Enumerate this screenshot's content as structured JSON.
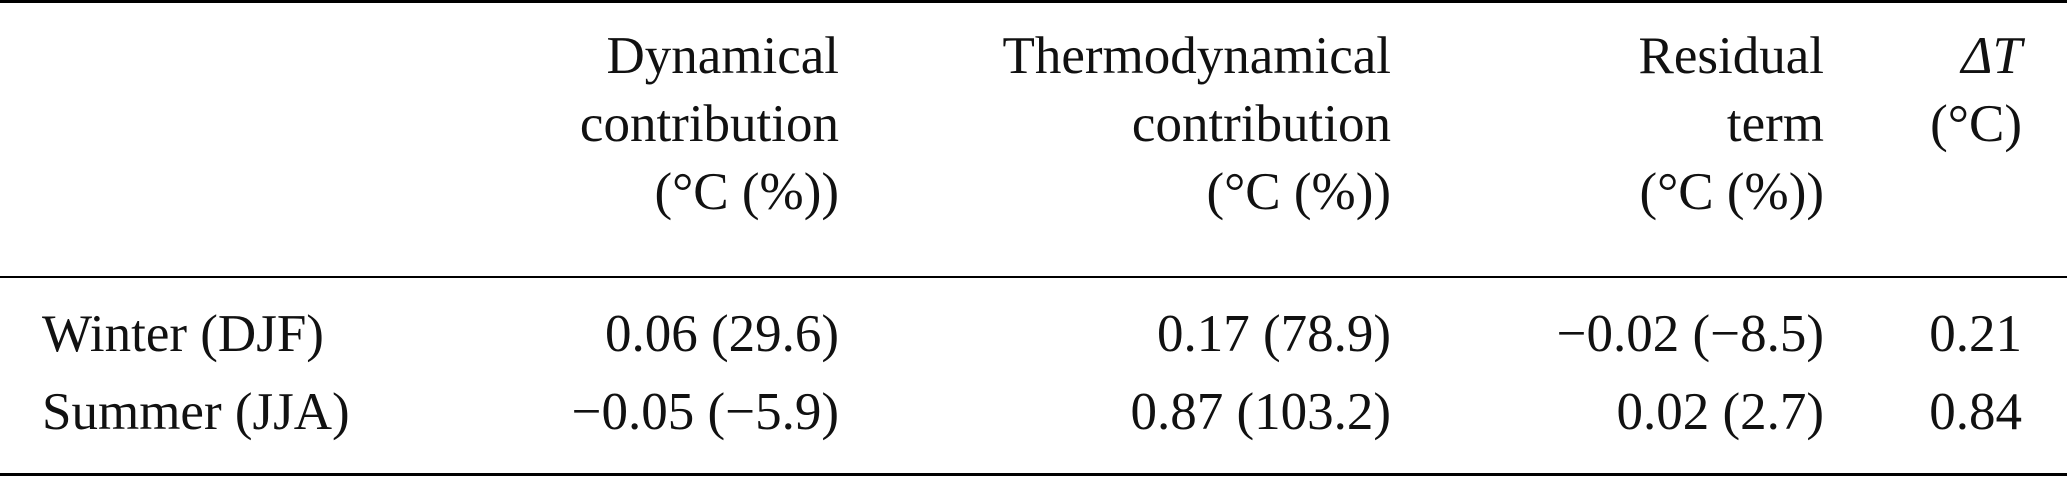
{
  "table": {
    "headers": [
      {
        "lines": [
          "Dynamical",
          "contribution",
          "(°C (%))"
        ]
      },
      {
        "lines": [
          "Thermodynamical",
          "contribution",
          "(°C (%))"
        ]
      },
      {
        "lines": [
          "Residual",
          "term",
          "(°C (%))"
        ]
      },
      {
        "lines": [
          "ΔT",
          "(°C)"
        ]
      }
    ],
    "rows": [
      {
        "label": "Winter (DJF)",
        "dynamical": "0.06 (29.6)",
        "thermodynamical": "0.17 (78.9)",
        "residual": "−0.02 (−8.5)",
        "delta_t": "0.21"
      },
      {
        "label": "Summer (JJA)",
        "dynamical": "−0.05 (−5.9)",
        "thermodynamical": "0.87 (103.2)",
        "residual": "0.02 (2.7)",
        "delta_t": "0.84"
      }
    ]
  }
}
